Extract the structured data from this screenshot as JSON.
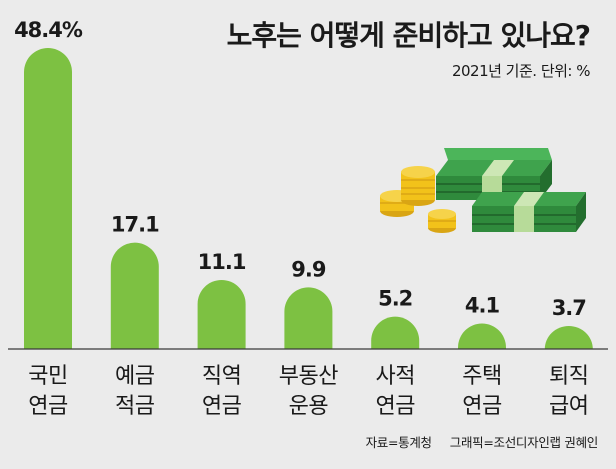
{
  "title": "노후는 어떻게 준비하고 있나요?",
  "subtitle": "2021년 기준. 단위: %",
  "source": "자료=통계청",
  "credit": "그래픽=조선디자인랩 권혜인",
  "colors": {
    "bar": "#7dc142",
    "background": "#ebebeb",
    "baseline": "#3a3a3a",
    "cash": "#2f8a3c",
    "coin": "#f2c21a"
  },
  "illustration": {
    "icon": "money-stacks-and-coins-icon"
  },
  "chart_data": {
    "type": "bar",
    "categories": [
      "국민 연금",
      "예금 적금",
      "직역 연금",
      "부동산 운용",
      "사적 연금",
      "주택 연금",
      "퇴직 급여"
    ],
    "category_lines": [
      [
        "국민",
        "연금"
      ],
      [
        "예금",
        "적금"
      ],
      [
        "직역",
        "연금"
      ],
      [
        "부동산",
        "운용"
      ],
      [
        "사적",
        "연금"
      ],
      [
        "주택",
        "연금"
      ],
      [
        "퇴직",
        "급여"
      ]
    ],
    "values": [
      48.4,
      17.1,
      11.1,
      9.9,
      5.2,
      4.1,
      3.7
    ],
    "value_labels": [
      "48.4%",
      "17.1",
      "11.1",
      "9.9",
      "5.2",
      "4.1",
      "3.7"
    ],
    "title": "노후는 어떻게 준비하고 있나요?",
    "ylim": [
      0,
      48.4
    ],
    "grid": false,
    "legend": "none"
  }
}
